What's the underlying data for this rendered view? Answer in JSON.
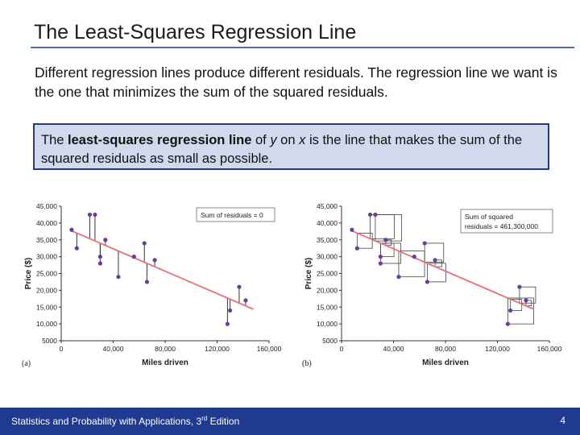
{
  "slide": {
    "title": "The Least-Squares Regression Line",
    "intro": "Different regression lines produce different residuals.  The regression line we want is the one that minimizes the sum of the squared residuals.",
    "definition": {
      "part1": "The ",
      "term": "least-squares regression line",
      "part2": " of ",
      "y": "y",
      "part3": " on ",
      "x": "x",
      "part4": " is the line that makes the sum of the squared residuals as small as possible."
    },
    "footer": {
      "text_before": "Statistics and Probability with Applications, 3",
      "superscript": "rd",
      "text_after": " Edition",
      "page": "4"
    }
  },
  "chart_data": [
    {
      "type": "scatter",
      "panel_label": "(a)",
      "annotation": "Sum of residuals = 0",
      "xlabel": "Miles driven",
      "ylabel": "Price ($)",
      "xlim": [
        0,
        160000
      ],
      "ylim": [
        5000,
        45000
      ],
      "x_ticks": [
        "0",
        "40,000",
        "80,000",
        "120,000",
        "160,000"
      ],
      "y_ticks": [
        "5000",
        "10,000",
        "15,000",
        "20,000",
        "25,000",
        "30,000",
        "35,000",
        "40,000",
        "45,000"
      ],
      "points": [
        {
          "x": 8000,
          "y": 38000
        },
        {
          "x": 12000,
          "y": 32500
        },
        {
          "x": 22000,
          "y": 42500
        },
        {
          "x": 26000,
          "y": 42500
        },
        {
          "x": 30000,
          "y": 28000
        },
        {
          "x": 30000,
          "y": 30000
        },
        {
          "x": 34000,
          "y": 35000
        },
        {
          "x": 44000,
          "y": 24000
        },
        {
          "x": 56000,
          "y": 30000
        },
        {
          "x": 64000,
          "y": 34000
        },
        {
          "x": 66000,
          "y": 22500
        },
        {
          "x": 72000,
          "y": 29000
        },
        {
          "x": 128000,
          "y": 10000
        },
        {
          "x": 130000,
          "y": 14000
        },
        {
          "x": 137000,
          "y": 21000
        },
        {
          "x": 142000,
          "y": 17000
        }
      ],
      "line": {
        "intercept": 39000,
        "slope": -0.1664
      },
      "series": [
        {
          "color": "#6b3d9a"
        }
      ],
      "line_color": "#e4707a"
    },
    {
      "type": "scatter",
      "panel_label": "(b)",
      "annotation": [
        "Sum of squared",
        "residuals = 461,300,000"
      ],
      "xlabel": "Miles driven",
      "ylabel": "Price ($)",
      "xlim": [
        0,
        160000
      ],
      "ylim": [
        5000,
        45000
      ],
      "x_ticks": [
        "0",
        "40,000",
        "80,000",
        "120,000",
        "160,000"
      ],
      "y_ticks": [
        "5000",
        "10,000",
        "15,000",
        "20,000",
        "25,000",
        "30,000",
        "35,000",
        "40,000",
        "45,000"
      ],
      "points": [
        {
          "x": 8000,
          "y": 38000
        },
        {
          "x": 12000,
          "y": 32500
        },
        {
          "x": 22000,
          "y": 42500
        },
        {
          "x": 26000,
          "y": 42500
        },
        {
          "x": 30000,
          "y": 28000
        },
        {
          "x": 30000,
          "y": 30000
        },
        {
          "x": 34000,
          "y": 35000
        },
        {
          "x": 44000,
          "y": 24000
        },
        {
          "x": 56000,
          "y": 30000
        },
        {
          "x": 64000,
          "y": 34000
        },
        {
          "x": 66000,
          "y": 22500
        },
        {
          "x": 72000,
          "y": 29000
        },
        {
          "x": 128000,
          "y": 10000
        },
        {
          "x": 130000,
          "y": 14000
        },
        {
          "x": 137000,
          "y": 21000
        },
        {
          "x": 142000,
          "y": 17000
        }
      ],
      "line": {
        "intercept": 39000,
        "slope": -0.1664
      },
      "series": [
        {
          "color": "#6b3d9a"
        }
      ],
      "line_color": "#e4707a"
    }
  ]
}
